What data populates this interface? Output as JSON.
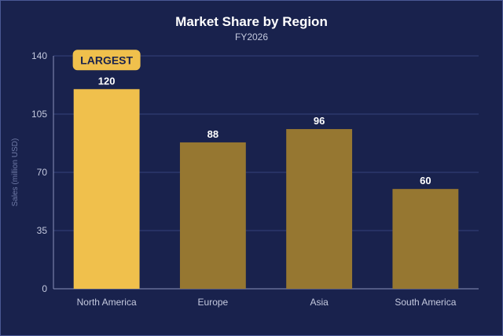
{
  "chart_data": {
    "type": "bar",
    "title": "Market Share by Region",
    "subtitle": "FY2026",
    "ylabel": "Sales (million USD)",
    "xlabel": "",
    "ylim": [
      0,
      140
    ],
    "yticks": [
      0,
      35,
      70,
      105,
      140
    ],
    "grid": true,
    "categories": [
      "North America",
      "Europe",
      "Asia",
      "South America"
    ],
    "values": [
      120,
      88,
      96,
      60
    ],
    "highlight_index": 0,
    "annotation": "LARGEST",
    "colors": {
      "background": "#19224d",
      "highlight_bar": "#f0c04c",
      "bar": "#967731",
      "grid": "#35417a",
      "axis": "#8a93bb",
      "text": "#ffffff",
      "tick_text": "#c4c9de",
      "muted_text": "#6f7aa6",
      "badge_text": "#19224d"
    }
  }
}
